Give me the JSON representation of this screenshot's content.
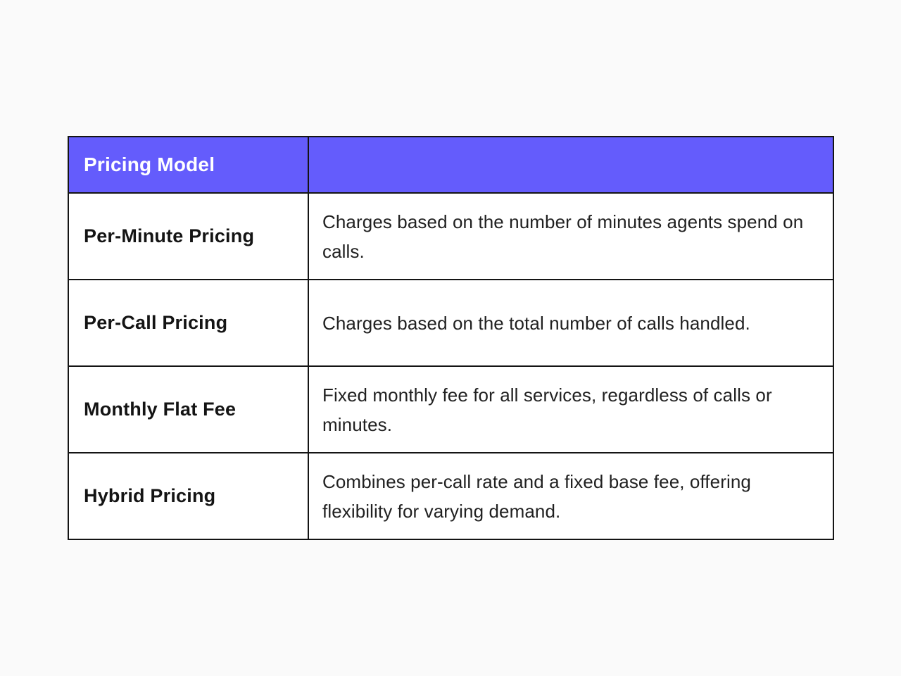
{
  "colors": {
    "page_bg": "#FAFAFA",
    "header_bg": "#645CFC",
    "header_text": "#FFFFFF",
    "body_text": "#212121",
    "label_text": "#141414",
    "border": "#141414",
    "cell_bg": "#FFFFFF"
  },
  "table": {
    "header": {
      "col1": "Pricing Model",
      "col2": ""
    },
    "rows": [
      {
        "model": "Per-Minute Pricing",
        "description": "Charges based on the number of minutes agents spend on calls."
      },
      {
        "model": "Per-Call Pricing",
        "description": "Charges based on the total number of calls handled."
      },
      {
        "model": "Monthly Flat Fee",
        "description": "Fixed monthly fee for all services, regardless of calls or minutes."
      },
      {
        "model": "Hybrid Pricing",
        "description": "Combines per-call rate and a fixed base fee, offering flexibility for varying demand."
      }
    ]
  }
}
